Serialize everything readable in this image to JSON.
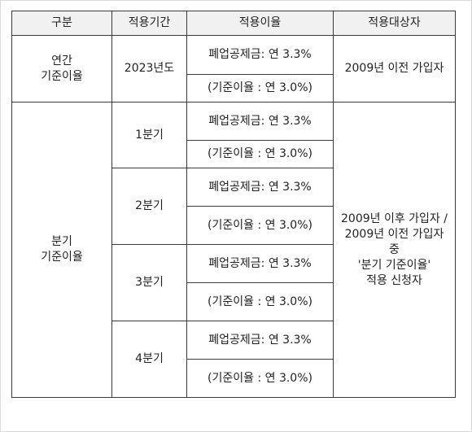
{
  "table": {
    "headers": [
      "구분",
      "적용기간",
      "적용이율",
      "적용대상자"
    ],
    "annual": {
      "category_line1": "연간",
      "category_line2": "기준이율",
      "period": "2023년도",
      "rate_main": "폐업공제금: 연 3.3%",
      "rate_base": "(기준이율 : 연 3.0%)",
      "target": "2009년 이전 가입자"
    },
    "quarterly": {
      "category_line1": "분기",
      "category_line2": "기준이율",
      "target_lines": [
        "2009년 이후 가입자 /",
        "2009년 이전 가입자",
        "중",
        "'분기 기준이율'",
        "적용 신청자"
      ],
      "rows": [
        {
          "period": "1분기",
          "rate_main": "폐업공제금: 연 3.3%",
          "rate_base": "(기준이율 : 연 3.0%)"
        },
        {
          "period": "2분기",
          "rate_main": "폐업공제금: 연 3.3%",
          "rate_base": "(기준이율 : 연 3.0%)"
        },
        {
          "period": "3분기",
          "rate_main": "폐업공제금: 연 3.3%",
          "rate_base": "(기준이율 : 연 3.0%)"
        },
        {
          "period": "4분기",
          "rate_main": "폐업공제금: 연 3.3%",
          "rate_base": "(기준이율 : 연 3.0%)"
        }
      ]
    }
  }
}
